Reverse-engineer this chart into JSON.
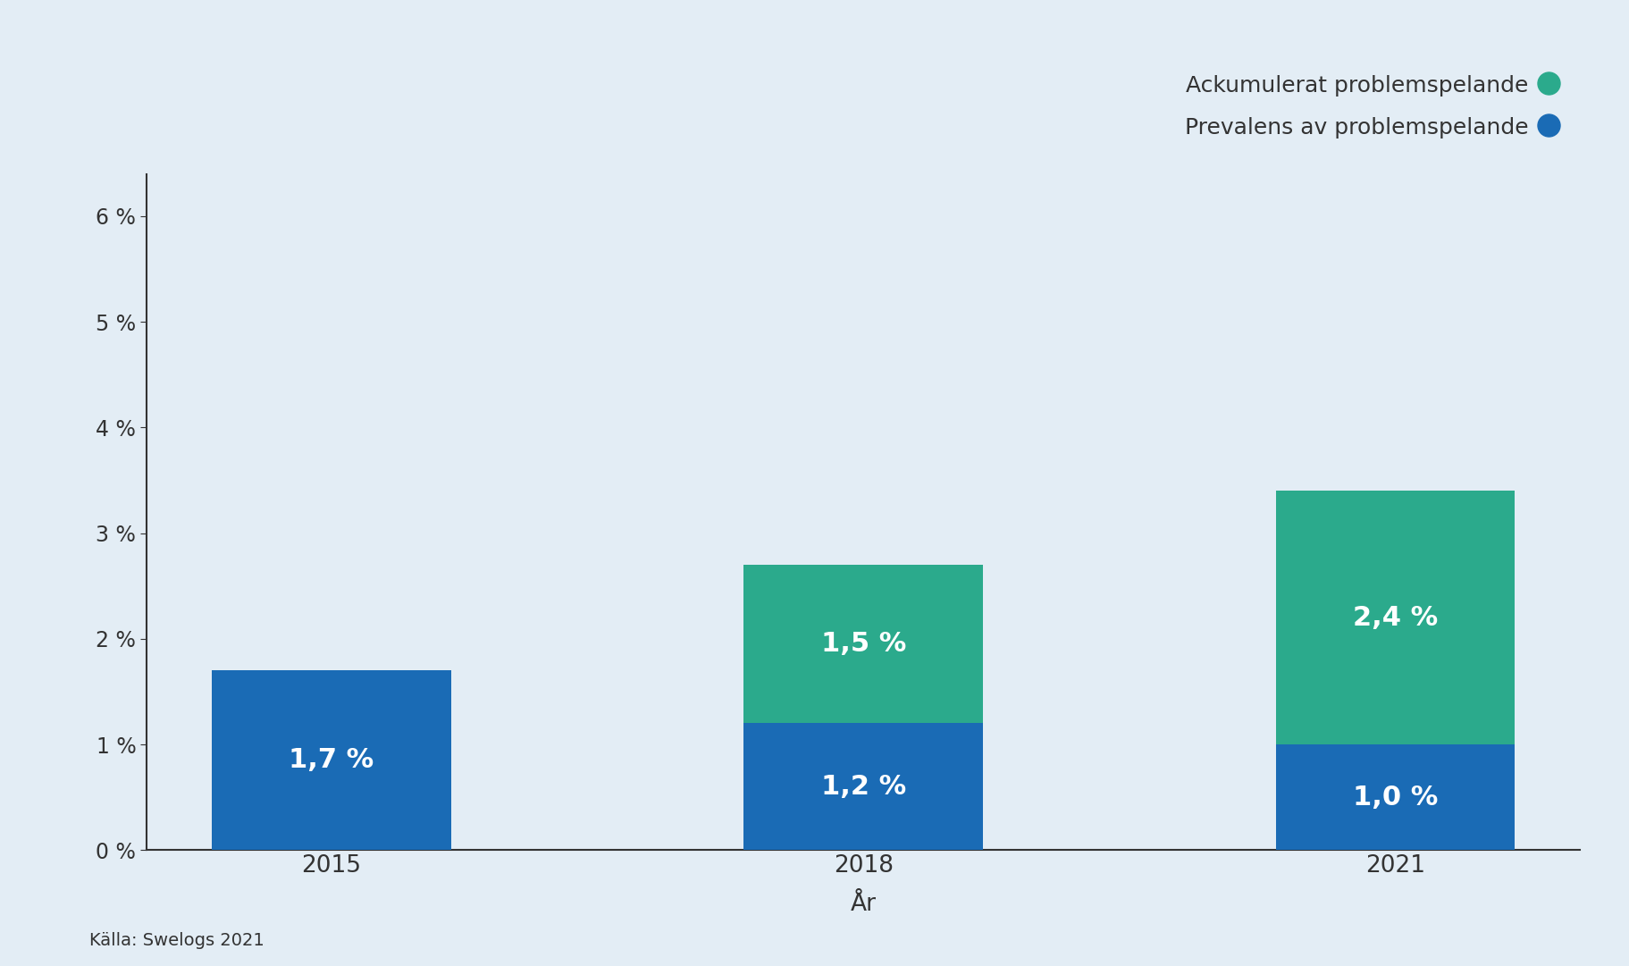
{
  "categories": [
    "2015",
    "2018",
    "2021"
  ],
  "prevalens_values": [
    1.7,
    1.2,
    1.0
  ],
  "ackumulerat_values": [
    0.0,
    1.5,
    2.4
  ],
  "prevalens_color": "#1A6BB5",
  "ackumulerat_color": "#2BAA8C",
  "background_color": "#E3EDF5",
  "xlabel": "År",
  "yticks": [
    0,
    1,
    2,
    3,
    4,
    5,
    6
  ],
  "ytick_labels": [
    "0 %",
    "1 %",
    "2 %",
    "3 %",
    "4 %",
    "5 %",
    "6 %"
  ],
  "ylim": [
    0,
    6.4
  ],
  "legend_label_acku": "Ackumulerat problemspelande",
  "legend_label_prev": "Prevalens av problemspelande",
  "source_text": "Källa: Swelogs 2021",
  "bar_width": 0.45,
  "labels": {
    "2015_prev": "1,7 %",
    "2018_prev": "1,2 %",
    "2018_acku": "1,5 %",
    "2021_prev": "1,0 %",
    "2021_acku": "2,4 %"
  },
  "text_color": "#FFFFFF",
  "label_fontsize": 22,
  "tick_fontsize": 17,
  "legend_fontsize": 18,
  "xlabel_fontsize": 19,
  "source_fontsize": 14,
  "spine_color": "#333333"
}
